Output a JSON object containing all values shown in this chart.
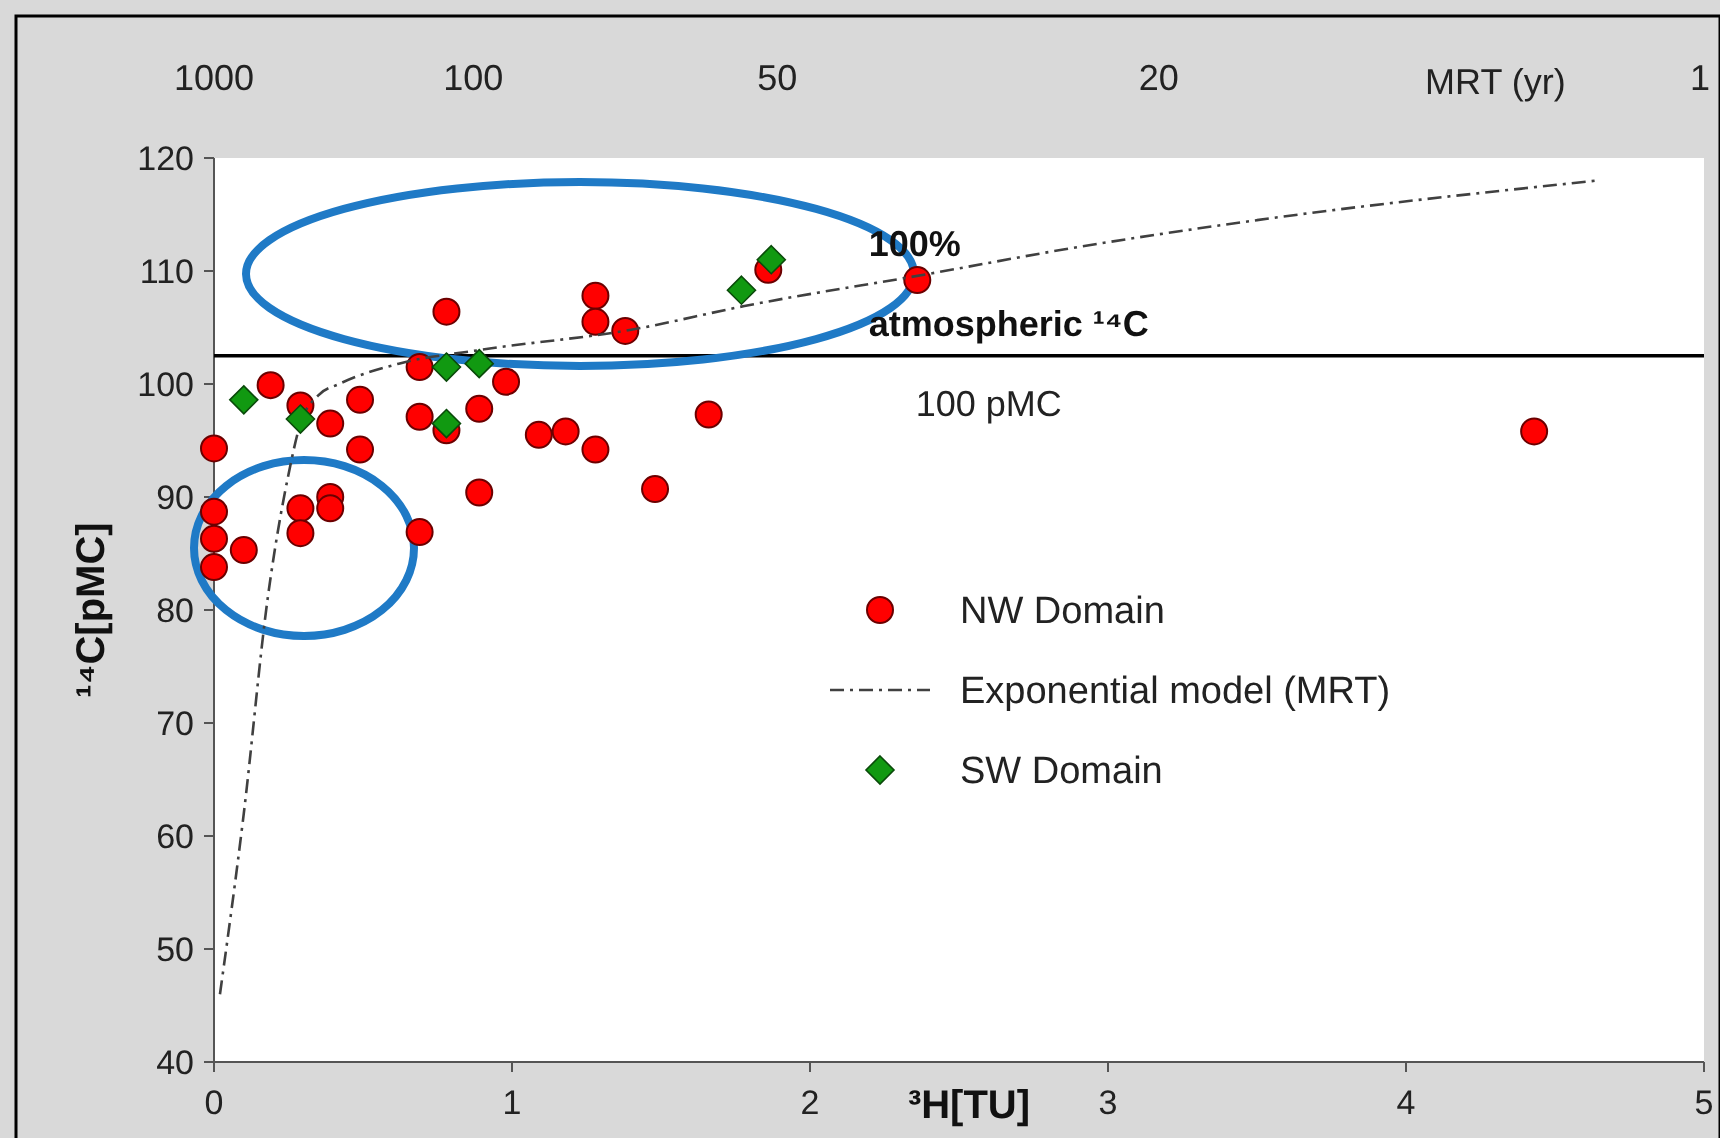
{
  "chart_data": {
    "type": "scatter",
    "xlabel": "³H[TU]",
    "ylabel": "¹⁴C[pMC]",
    "x2label": "MRT (yr)",
    "xlim": [
      0,
      5
    ],
    "xticks": [
      0,
      1,
      2,
      3,
      4,
      5
    ],
    "ylim": [
      40,
      120
    ],
    "yticks": [
      40,
      50,
      60,
      70,
      80,
      90,
      100,
      110,
      120
    ],
    "grid": false,
    "legend": "right",
    "ref_lines": [
      {
        "axis": "y",
        "value": 102.5,
        "label": "100 pMC",
        "color": "#000000"
      }
    ],
    "annotations": [
      {
        "text": "100% atmospheric ¹⁴C",
        "x": 2.6,
        "y": 102.5
      },
      "1000",
      "100",
      "50",
      "20",
      "1"
    ],
    "series": [
      {
        "name": "NW Domain",
        "marker": "circle",
        "color": "#ff0000",
        "x": [
          0,
          0,
          0,
          0,
          0.1,
          0.19,
          0.29,
          0.39,
          0.49,
          0.49,
          0.29,
          0.39,
          0.39,
          0.29,
          0.69,
          0.69,
          0.69,
          0.78,
          0.89,
          0.98,
          0.89,
          1.09,
          1.18,
          1.28,
          1.48,
          1.66,
          0.78,
          1.28,
          1.28,
          1.38,
          1.86,
          2.36,
          4.43
        ],
        "values": [
          94.3,
          88.7,
          86.3,
          83.8,
          85.3,
          99.9,
          98.1,
          96.5,
          98.6,
          94.2,
          89,
          90,
          89,
          86.8,
          86.9,
          101.5,
          97.1,
          95.9,
          97.8,
          100.2,
          90.4,
          95.5,
          95.8,
          94.2,
          90.7,
          97.3,
          106.4,
          107.8,
          105.5,
          104.7,
          110.1,
          109.2,
          95.8
        ]
      },
      {
        "name": "Exponential model (MRT)",
        "type": "line",
        "marker": "none",
        "line_style": "dashed",
        "color": "#404040",
        "x": [
          0.02,
          0.1,
          0.18,
          0.25,
          0.29,
          0.35,
          0.42,
          0.62,
          0.89,
          1.4,
          1.78,
          2.41,
          2.85,
          3.5,
          4.64
        ],
        "values": [
          46,
          62,
          81,
          92,
          96.5,
          99,
          100,
          101.8,
          103,
          104.8,
          106.9,
          109.8,
          111.9,
          114.5,
          118
        ]
      },
      {
        "name": "SW Domain",
        "marker": "diamond",
        "color": "#119911",
        "x": [
          0.1,
          0.29,
          0.78,
          0.89,
          0.78,
          1.77,
          1.87
        ],
        "values": [
          98.6,
          96.9,
          101.5,
          101.8,
          96.5,
          108.3,
          111
        ]
      }
    ]
  }
}
